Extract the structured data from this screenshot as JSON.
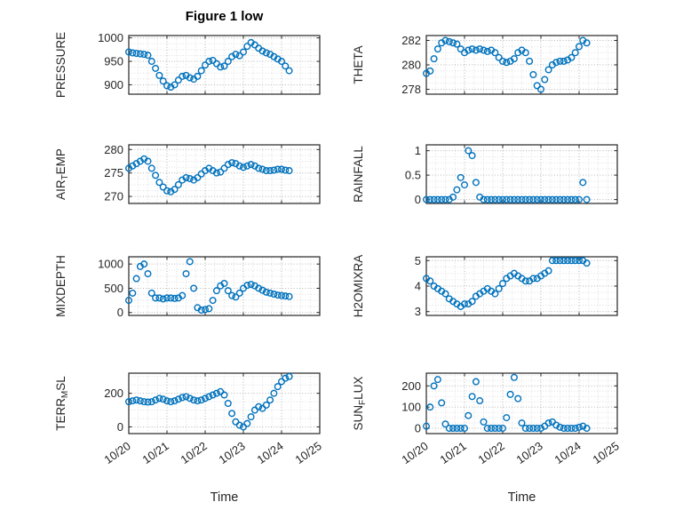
{
  "figure": {
    "marker_color": "#0072BD",
    "axis_color": "#262626",
    "grid_color": "#b5b5b5",
    "minor_grid_color": "#dedede",
    "title_color": "#000000"
  },
  "chart_data": {
    "type": "scatter",
    "title": "Figure 1 low",
    "xlabel": "Time",
    "x_unit": "days since 10/20",
    "xlim": [
      0,
      5
    ],
    "grid": true,
    "minor_grid": true,
    "marker": "open-circle",
    "xticks": {
      "values": [
        0,
        1,
        2,
        3,
        4,
        5
      ],
      "labels": [
        "10/20",
        "10/21",
        "10/22",
        "10/23",
        "10/24",
        "10/25"
      ]
    },
    "x": [
      0,
      0.1,
      0.2,
      0.3,
      0.4,
      0.5,
      0.6,
      0.7,
      0.8,
      0.9,
      1,
      1.1,
      1.2,
      1.3,
      1.4,
      1.5,
      1.6,
      1.7,
      1.8,
      1.9,
      2,
      2.1,
      2.2,
      2.3,
      2.4,
      2.5,
      2.6,
      2.7,
      2.8,
      2.9,
      3,
      3.1,
      3.2,
      3.3,
      3.4,
      3.5,
      3.6,
      3.7,
      3.8,
      3.9,
      4,
      4.1,
      4.2
    ],
    "subplots": [
      {
        "name": "PRESSURE",
        "ylabel": "PRESSURE",
        "row": 0,
        "col": 0,
        "yticks": [
          900,
          950,
          1000
        ],
        "ylim": [
          880,
          1005
        ],
        "values": [
          970,
          968,
          967,
          966,
          965,
          963,
          950,
          935,
          920,
          908,
          898,
          895,
          900,
          910,
          918,
          920,
          915,
          912,
          918,
          930,
          942,
          950,
          952,
          945,
          938,
          940,
          950,
          960,
          965,
          962,
          970,
          982,
          990,
          985,
          978,
          972,
          968,
          965,
          960,
          955,
          950,
          940,
          930
        ]
      },
      {
        "name": "AIR_TEMP",
        "ylabel": "AIR_TEMP",
        "row": 1,
        "col": 0,
        "yticks": [
          270,
          275,
          280
        ],
        "ylim": [
          268.5,
          281
        ],
        "values": [
          276,
          276.5,
          277,
          277.5,
          278,
          277.5,
          276,
          274.5,
          273,
          272,
          271.2,
          271,
          271.5,
          272.5,
          273.5,
          274,
          273.8,
          273.5,
          274,
          274.8,
          275.5,
          276,
          275.5,
          275,
          275.2,
          276,
          276.8,
          277.2,
          277,
          276.5,
          276.2,
          276.5,
          276.8,
          276.5,
          276,
          275.8,
          275.5,
          275.5,
          275.6,
          275.8,
          275.8,
          275.6,
          275.5
        ]
      },
      {
        "name": "MIXDEPTH",
        "ylabel": "MIXDEPTH",
        "row": 2,
        "col": 0,
        "yticks": [
          0,
          500,
          1000
        ],
        "ylim": [
          -60,
          1150
        ],
        "values": [
          250,
          400,
          700,
          950,
          1000,
          800,
          400,
          300,
          300,
          280,
          300,
          300,
          290,
          300,
          350,
          800,
          1050,
          500,
          100,
          50,
          60,
          80,
          250,
          450,
          550,
          600,
          450,
          350,
          320,
          400,
          500,
          560,
          580,
          550,
          500,
          460,
          420,
          400,
          380,
          360,
          350,
          340,
          330
        ]
      },
      {
        "name": "TERR_MSL",
        "ylabel": "TERR_MSL",
        "row": 3,
        "col": 0,
        "yticks": [
          0,
          200
        ],
        "ylim": [
          -40,
          320
        ],
        "values": [
          150,
          155,
          160,
          155,
          150,
          148,
          150,
          160,
          170,
          165,
          155,
          150,
          155,
          165,
          175,
          180,
          170,
          160,
          155,
          160,
          170,
          180,
          190,
          200,
          210,
          190,
          140,
          80,
          30,
          10,
          0,
          20,
          60,
          100,
          120,
          110,
          130,
          160,
          200,
          240,
          270,
          290,
          300
        ]
      },
      {
        "name": "THETA",
        "ylabel": "THETA",
        "row": 0,
        "col": 1,
        "yticks": [
          278,
          280,
          282
        ],
        "ylim": [
          277.6,
          282.4
        ],
        "values": [
          279.3,
          279.5,
          280.5,
          281.3,
          281.8,
          282,
          281.9,
          281.8,
          281.7,
          281.3,
          281,
          281.2,
          281.3,
          281.2,
          281.3,
          281.2,
          281.1,
          281.2,
          281,
          280.6,
          280.3,
          280.2,
          280.3,
          280.5,
          281,
          281.2,
          281,
          280.3,
          279.2,
          278.3,
          278,
          278.8,
          279.6,
          280,
          280.2,
          280.3,
          280.3,
          280.4,
          280.6,
          281,
          281.5,
          282,
          281.8
        ]
      },
      {
        "name": "RAINFALL",
        "ylabel": "RAINFALL",
        "row": 1,
        "col": 1,
        "yticks": [
          0,
          0.5,
          1
        ],
        "ylim": [
          -0.08,
          1.12
        ],
        "values": [
          0,
          0,
          0,
          0,
          0,
          0,
          0,
          0.05,
          0.2,
          0.45,
          0.3,
          1,
          0.9,
          0.35,
          0.05,
          0,
          0,
          0,
          0,
          0,
          0,
          0,
          0,
          0,
          0,
          0,
          0,
          0,
          0,
          0,
          0,
          0,
          0,
          0,
          0,
          0,
          0,
          0,
          0,
          0,
          0,
          0.35,
          0
        ]
      },
      {
        "name": "H2OMIXRA",
        "ylabel": "H2OMIXRA",
        "row": 2,
        "col": 1,
        "yticks": [
          3,
          4,
          5
        ],
        "ylim": [
          2.85,
          5.15
        ],
        "values": [
          4.3,
          4.2,
          4,
          3.9,
          3.8,
          3.7,
          3.5,
          3.4,
          3.3,
          3.2,
          3.3,
          3.3,
          3.4,
          3.6,
          3.7,
          3.8,
          3.9,
          3.8,
          3.7,
          3.9,
          4.1,
          4.3,
          4.4,
          4.5,
          4.4,
          4.3,
          4.2,
          4.2,
          4.3,
          4.3,
          4.4,
          4.5,
          4.6,
          5,
          5,
          5,
          5,
          5,
          5,
          5,
          5,
          5,
          4.9
        ]
      },
      {
        "name": "SUN_FLUX",
        "ylabel": "SUN_FLUX",
        "row": 3,
        "col": 1,
        "yticks": [
          0,
          100,
          200
        ],
        "ylim": [
          -25,
          260
        ],
        "values": [
          10,
          100,
          200,
          230,
          120,
          20,
          0,
          0,
          0,
          0,
          0,
          60,
          150,
          220,
          130,
          30,
          0,
          0,
          0,
          0,
          0,
          50,
          160,
          240,
          140,
          25,
          0,
          0,
          0,
          0,
          0,
          10,
          25,
          30,
          15,
          5,
          0,
          0,
          0,
          0,
          5,
          10,
          0
        ]
      }
    ]
  }
}
